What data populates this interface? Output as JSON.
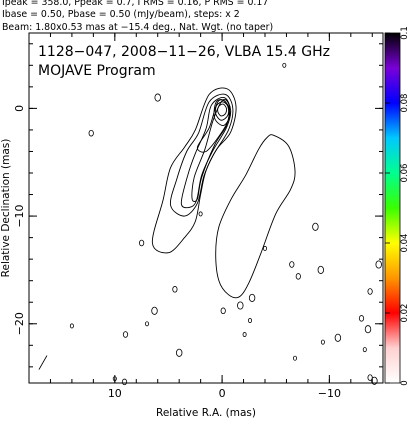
{
  "header": {
    "line1": "Ipeak = 358.0, Ppeak = 0.7, I RMS = 0.16, P RMS = 0.17",
    "line2": "Ibase = 0.50, Pbase = 0.50 (mJy/beam), steps: x 2",
    "line3": "Beam: 1.80x0.53 mas at −15.4 deg., Nat. Wgt. (no taper)"
  },
  "plot": {
    "title_line1": "1128−047, 2008−11−26, VLBA 15.4 GHz",
    "title_line2": "MOJAVE Program",
    "xlabel": "Relative R.A. (mas)",
    "ylabel": "Relative Declination (mas)"
  },
  "colorbar": {
    "ticks": [
      "0.1",
      "0.08",
      "0.06",
      "0.04",
      "0.02",
      "0"
    ],
    "vmin": 0,
    "vmax": 0.1,
    "colors_top_to_bottom": [
      "#000000",
      "#7a00d8",
      "#0000ff",
      "#00c8ff",
      "#00ff90",
      "#39ff00",
      "#ffff00",
      "#ff9600",
      "#ff0000",
      "#ffd0d0",
      "#ffffff"
    ]
  },
  "chart_data": {
    "type": "contour",
    "x": {
      "label": "Relative R.A. (mas)",
      "range": [
        18,
        -15
      ],
      "ticks": [
        10,
        0,
        -10
      ],
      "direction": "decreasing-right"
    },
    "y": {
      "label": "Relative Declination (mas)",
      "range": [
        -25.5,
        7
      ],
      "ticks": [
        0,
        -10,
        -20
      ]
    },
    "core": {
      "x": 0,
      "y": 0,
      "peak_mJy_per_beam": 358.0
    },
    "contour_levels_mJy_per_beam": [
      0.5,
      1,
      2,
      4,
      8,
      16,
      32,
      64,
      128,
      256
    ],
    "inner_jet_contours": [
      {
        "level": 0.5,
        "points": [
          [
            6.5,
            -12.5
          ],
          [
            5.5,
            -8.5
          ],
          [
            4.8,
            -5.5
          ],
          [
            3.5,
            -3.6
          ],
          [
            2.5,
            -2.0
          ],
          [
            1.2,
            1.3
          ],
          [
            -0.5,
            1.8
          ],
          [
            -1.3,
            0.2
          ],
          [
            -0.8,
            -2.2
          ],
          [
            0.5,
            -3.8
          ],
          [
            1.5,
            -5.8
          ],
          [
            2.0,
            -8.0
          ],
          [
            2.5,
            -10.5
          ],
          [
            3.5,
            -12.0
          ],
          [
            5.0,
            -13.4
          ]
        ]
      },
      {
        "level": 1,
        "points": [
          [
            4.8,
            -9.0
          ],
          [
            4.2,
            -6.5
          ],
          [
            3.3,
            -4.0
          ],
          [
            2.2,
            -2.3
          ],
          [
            1.2,
            0.6
          ],
          [
            -0.3,
            1.3
          ],
          [
            -1.0,
            0.0
          ],
          [
            -0.6,
            -2.0
          ],
          [
            0.8,
            -4.3
          ],
          [
            1.7,
            -6.3
          ],
          [
            2.3,
            -8.8
          ],
          [
            3.5,
            -10.0
          ]
        ]
      },
      {
        "level": 2,
        "points": [
          [
            3.8,
            -8.8
          ],
          [
            3.2,
            -6.2
          ],
          [
            2.5,
            -4.2
          ],
          [
            1.5,
            -1.9
          ],
          [
            1.0,
            0.3
          ],
          [
            -0.2,
            1.0
          ],
          [
            -0.8,
            -0.2
          ],
          [
            -0.4,
            -1.8
          ],
          [
            0.9,
            -4.0
          ],
          [
            1.9,
            -6.2
          ],
          [
            2.4,
            -8.6
          ],
          [
            3.1,
            -9.2
          ]
        ]
      },
      {
        "level": 4,
        "points": [
          [
            2.8,
            -8.4
          ],
          [
            2.6,
            -6.4
          ],
          [
            1.6,
            -3.8
          ],
          [
            0.8,
            -1.0
          ],
          [
            -0.1,
            0.8
          ],
          [
            -0.7,
            0.1
          ],
          [
            -0.4,
            -1.6
          ],
          [
            0.7,
            -3.4
          ],
          [
            1.9,
            -6.4
          ],
          [
            2.3,
            -8.4
          ]
        ]
      },
      {
        "level": 8,
        "points": [
          [
            2.3,
            -3.6
          ],
          [
            1.2,
            -1.8
          ],
          [
            0.4,
            0.6
          ],
          [
            -0.4,
            0.5
          ],
          [
            -0.6,
            -1.0
          ],
          [
            0.3,
            -2.6
          ],
          [
            1.5,
            -4.0
          ]
        ]
      },
      {
        "level": 16,
        "points": [
          [
            0.6,
            0.5
          ],
          [
            0.0,
            0.8
          ],
          [
            -0.6,
            0.2
          ],
          [
            -0.7,
            -0.8
          ],
          [
            -0.1,
            -1.6
          ],
          [
            0.7,
            -0.9
          ]
        ]
      },
      {
        "level": 32,
        "points": [
          [
            0.5,
            0.3
          ],
          [
            -0.1,
            0.6
          ],
          [
            -0.6,
            0.1
          ],
          [
            -0.5,
            -0.7
          ],
          [
            0.1,
            -1.1
          ],
          [
            0.6,
            -0.5
          ]
        ]
      },
      {
        "level": 64,
        "points": [
          [
            0.3,
            0.2
          ],
          [
            -0.1,
            0.4
          ],
          [
            -0.4,
            0.0
          ],
          [
            -0.3,
            -0.5
          ],
          [
            0.1,
            -0.7
          ],
          [
            0.4,
            -0.3
          ]
        ]
      }
    ],
    "southern_plume_contour": {
      "level": 0.5,
      "points": [
        [
          -4.8,
          -2.5
        ],
        [
          -6.2,
          -3.5
        ],
        [
          -6.8,
          -5.8
        ],
        [
          -6.4,
          -7.5
        ],
        [
          -5.0,
          -9.8
        ],
        [
          -3.6,
          -13.5
        ],
        [
          -2.5,
          -16.2
        ],
        [
          -1.6,
          -17.5
        ],
        [
          -0.6,
          -17.3
        ],
        [
          0.3,
          -16.0
        ],
        [
          0.6,
          -13.5
        ],
        [
          0.3,
          -11.0
        ],
        [
          -0.8,
          -8.5
        ],
        [
          -2.2,
          -6.2
        ],
        [
          -3.4,
          -3.8
        ],
        [
          -4.2,
          -2.7
        ]
      ]
    },
    "peak_label_lower_right_feature": "none"
  }
}
